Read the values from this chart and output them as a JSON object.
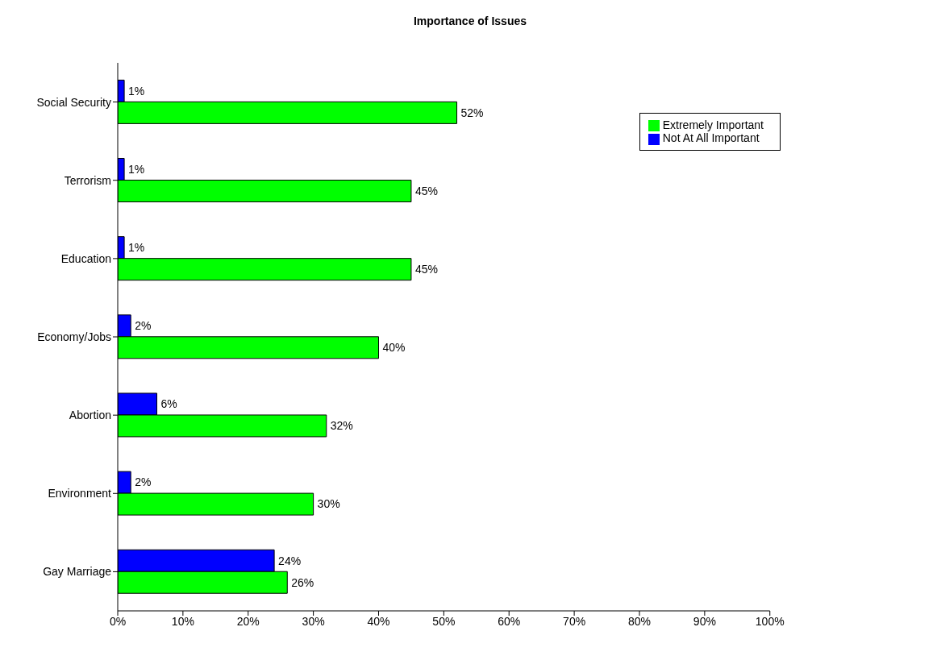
{
  "chart_data": {
    "type": "bar",
    "orientation": "horizontal",
    "title": "Importance of Issues",
    "categories": [
      "Social Security",
      "Terrorism",
      "Education",
      "Economy/Jobs",
      "Abortion",
      "Environment",
      "Gay Marriage"
    ],
    "series": [
      {
        "name": "Not At All Important",
        "color": "#0000ff",
        "values": [
          1,
          1,
          1,
          2,
          6,
          2,
          24
        ],
        "value_labels": [
          "1%",
          "1%",
          "1%",
          "2%",
          "6%",
          "2%",
          "24%"
        ]
      },
      {
        "name": "Extremely Important",
        "color": "#00ff00",
        "values": [
          52,
          45,
          45,
          40,
          32,
          30,
          26
        ],
        "value_labels": [
          "52%",
          "45%",
          "45%",
          "40%",
          "32%",
          "30%",
          "26%"
        ]
      }
    ],
    "xlim": [
      0,
      100
    ],
    "xticks": [
      {
        "value": 0,
        "label": "0%"
      },
      {
        "value": 10,
        "label": "10%"
      },
      {
        "value": 20,
        "label": "20%"
      },
      {
        "value": 30,
        "label": "30%"
      },
      {
        "value": 40,
        "label": "40%"
      },
      {
        "value": 50,
        "label": "50%"
      },
      {
        "value": 60,
        "label": "60%"
      },
      {
        "value": 70,
        "label": "70%"
      },
      {
        "value": 80,
        "label": "80%"
      },
      {
        "value": 90,
        "label": "90%"
      },
      {
        "value": 100,
        "label": "100%"
      }
    ],
    "grid": false,
    "legend": "top right"
  }
}
